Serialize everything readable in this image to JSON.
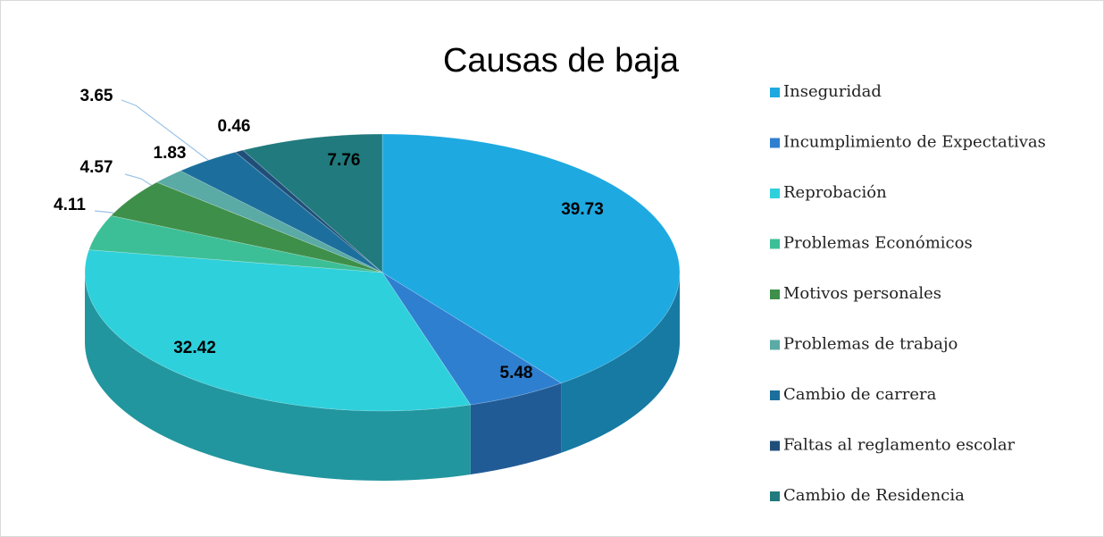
{
  "chart_data": {
    "type": "pie",
    "title": "Causas de baja",
    "categories": [
      "Inseguridad",
      "Incumplimiento de Expectativas",
      "Reprobación",
      "Problemas Económicos",
      "Motivos personales",
      "Problemas de trabajo",
      "Cambio de carrera",
      "Faltas al reglamento escolar",
      "Cambio de Residencia"
    ],
    "values": [
      39.73,
      5.48,
      32.42,
      4.11,
      4.57,
      1.83,
      3.65,
      0.46,
      7.76
    ],
    "colors": [
      "#1ea9e1",
      "#2e7fd0",
      "#2ed0db",
      "#3cbf97",
      "#3e8f4a",
      "#5aaaa5",
      "#1c6f9c",
      "#1f4e79",
      "#217a7d"
    ],
    "legend": "right"
  }
}
